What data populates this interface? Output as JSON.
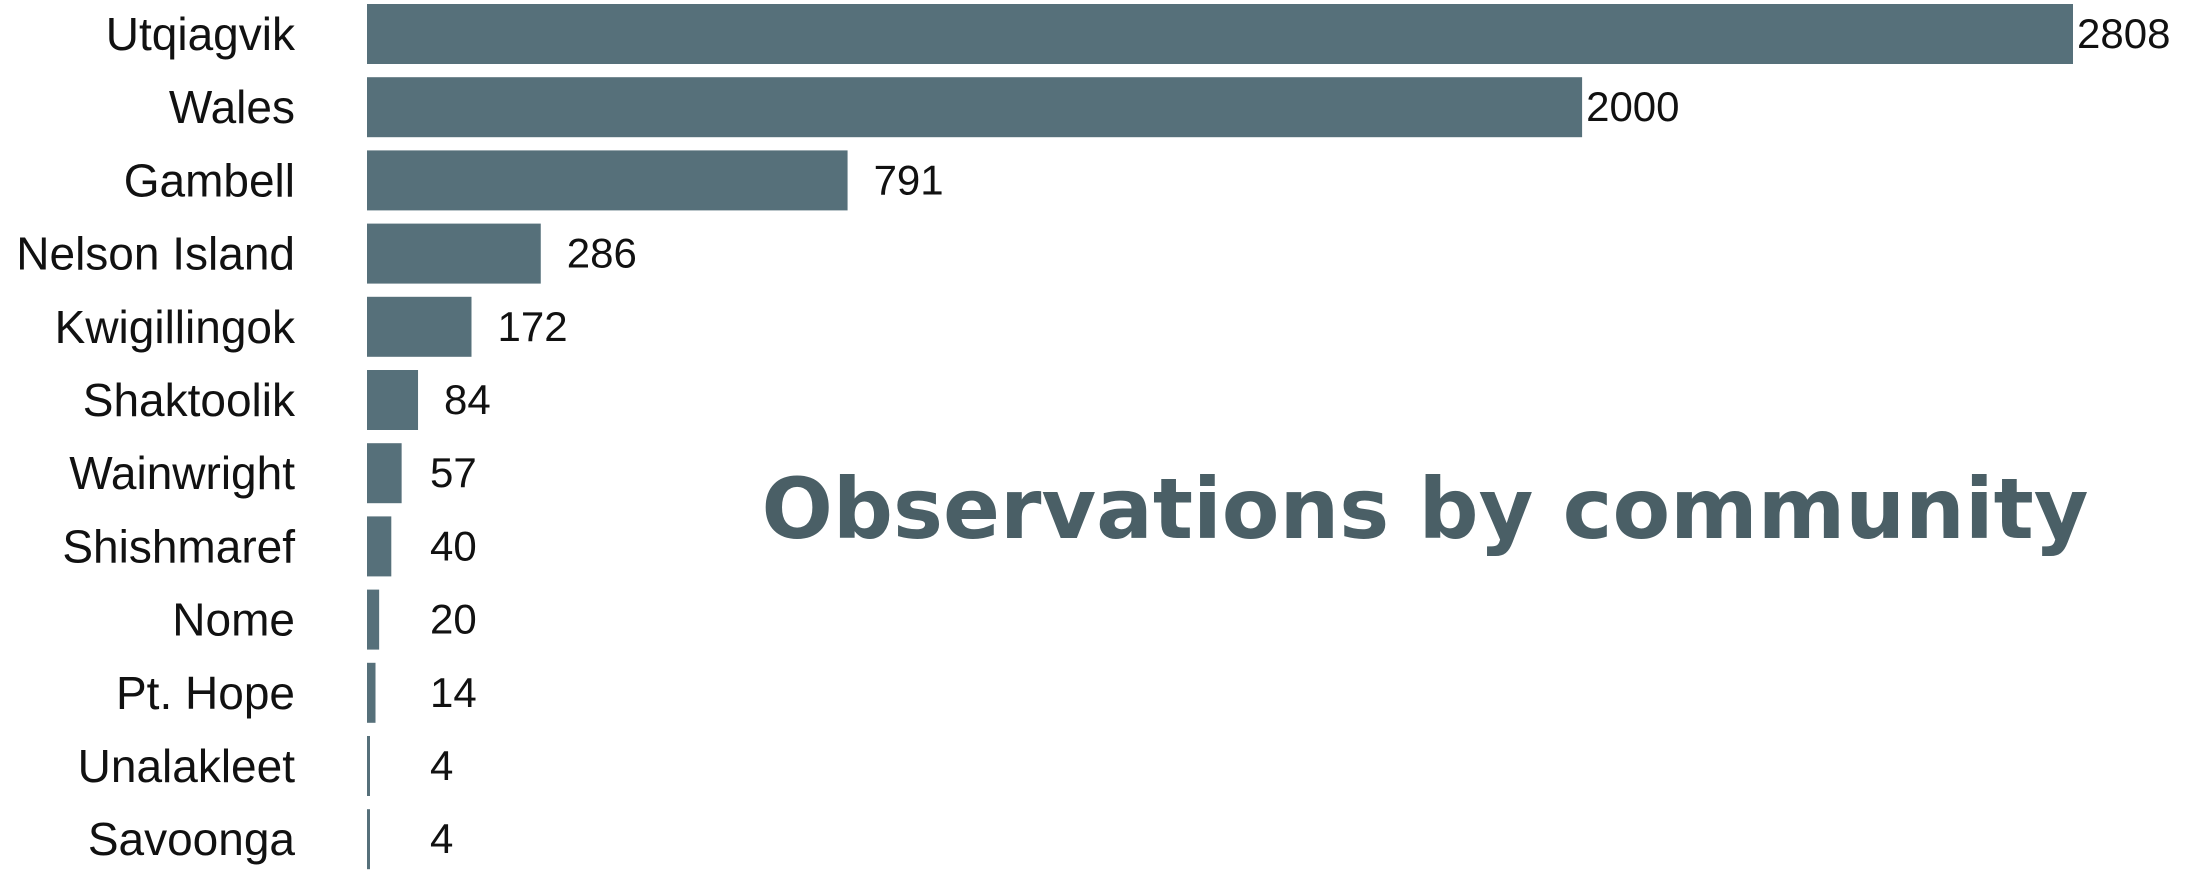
{
  "chart_data": {
    "type": "bar",
    "orientation": "horizontal",
    "title": "Observations by community",
    "categories": [
      "Utqiagvik",
      "Wales",
      "Gambell",
      "Nelson Island",
      "Kwigillingok",
      "Shaktoolik",
      "Wainwright",
      "Shishmaref",
      "Nome",
      "Pt. Hope",
      "Unalakleet",
      "Savoonga"
    ],
    "values": [
      2808,
      2000,
      791,
      286,
      172,
      84,
      57,
      40,
      20,
      14,
      4,
      4
    ],
    "value_labels": [
      "2808",
      "2000",
      "791",
      "286",
      "172",
      "84",
      "57",
      "40",
      "20",
      "14",
      "4",
      "4"
    ],
    "xlabel": "",
    "ylabel": "",
    "xlim": [
      0,
      2808
    ],
    "grid": false,
    "legend": "none",
    "bar_color": "#56707a",
    "title_color": "#4a5f66"
  }
}
